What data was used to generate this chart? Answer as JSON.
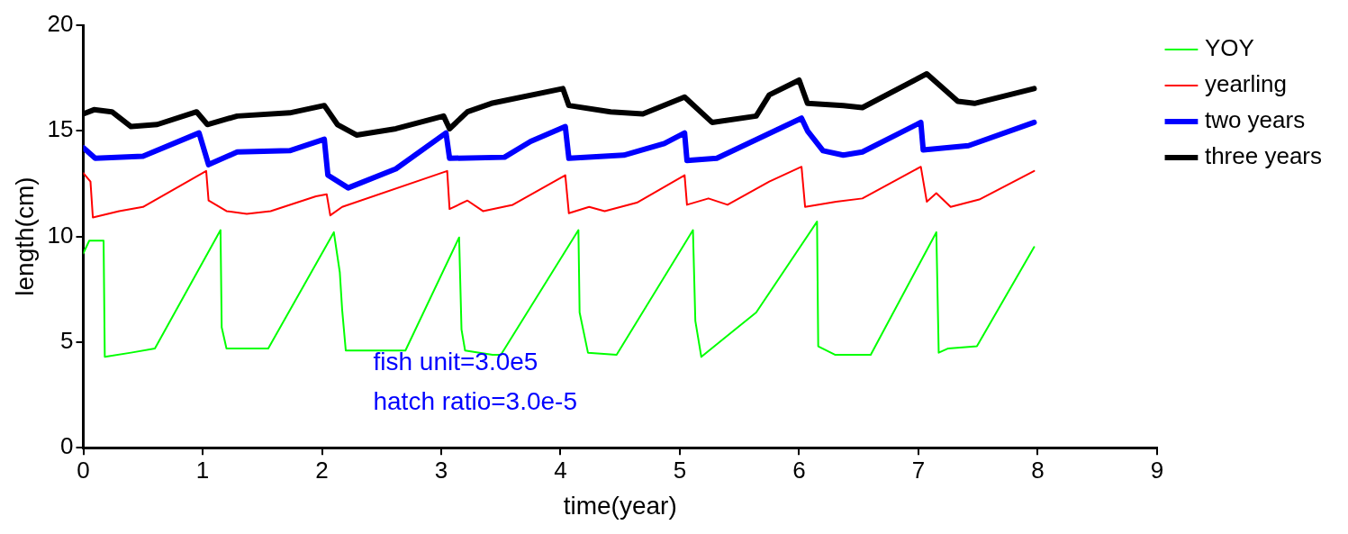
{
  "chart_data": {
    "type": "line",
    "xlabel": "time(year)",
    "ylabel": "length(cm)",
    "xlim": [
      0,
      9
    ],
    "xticks": [
      0,
      1,
      2,
      3,
      4,
      5,
      6,
      7,
      8,
      9
    ],
    "ylim": [
      0,
      20
    ],
    "yticks": [
      0,
      5,
      10,
      15,
      20
    ],
    "grid": false,
    "legend": "right",
    "marker": "none",
    "line_style": "solid",
    "annotations": [
      "fish unit=3.0e5",
      "hatch ratio=3.0e-5"
    ],
    "series": [
      {
        "name": "YOY",
        "color": "#00ff00",
        "x": [
          0,
          0.05,
          0.17,
          0.18,
          0.4,
          0.6,
          1.15,
          1.16,
          1.2,
          1.55,
          2.1,
          2.15,
          2.17,
          2.2,
          2.7,
          3.15,
          3.17,
          3.2,
          3.43,
          3.5,
          4.15,
          4.16,
          4.23,
          4.47,
          5.11,
          5.13,
          5.18,
          5.42,
          5.64,
          6.15,
          6.16,
          6.3,
          6.6,
          7.15,
          7.17,
          7.25,
          7.49,
          7.97
        ],
        "values": [
          9.2,
          9.8,
          9.8,
          4.3,
          4.5,
          4.7,
          10.3,
          5.7,
          4.7,
          4.7,
          10.2,
          8.3,
          6.5,
          4.6,
          4.6,
          9.95,
          5.6,
          4.6,
          4.4,
          4.4,
          10.3,
          6.4,
          4.5,
          4.4,
          10.3,
          6.0,
          4.3,
          5.4,
          6.4,
          10.7,
          4.8,
          4.4,
          4.4,
          10.2,
          4.5,
          4.7,
          4.8,
          9.5
        ]
      },
      {
        "name": "yearling",
        "color": "#ff0000",
        "x": [
          0,
          0.06,
          0.08,
          0.3,
          0.5,
          1.03,
          1.05,
          1.2,
          1.37,
          1.57,
          1.95,
          2.04,
          2.07,
          2.17,
          3.05,
          3.07,
          3.22,
          3.35,
          3.6,
          4.04,
          4.07,
          4.24,
          4.37,
          4.64,
          5.04,
          5.06,
          5.24,
          5.4,
          5.75,
          6.02,
          6.05,
          6.31,
          6.53,
          7.02,
          7.07,
          7.15,
          7.27,
          7.51,
          7.97
        ],
        "values": [
          13.0,
          12.6,
          10.9,
          11.2,
          11.4,
          13.1,
          11.7,
          11.2,
          11.07,
          11.2,
          11.9,
          12.0,
          11.0,
          11.4,
          13.1,
          11.3,
          11.7,
          11.2,
          11.5,
          12.9,
          11.1,
          11.4,
          11.2,
          11.6,
          12.9,
          11.5,
          11.8,
          11.5,
          12.6,
          13.3,
          11.4,
          11.65,
          11.8,
          13.3,
          11.65,
          12.05,
          11.4,
          11.75,
          13.1
        ]
      },
      {
        "name": "two years",
        "color": "#0000ff",
        "x": [
          0,
          0.1,
          0.5,
          0.97,
          1.05,
          1.29,
          1.73,
          2.02,
          2.05,
          2.22,
          2.62,
          3.04,
          3.07,
          3.53,
          3.75,
          4.04,
          4.07,
          4.53,
          4.87,
          5.04,
          5.06,
          5.31,
          6.02,
          6.07,
          6.2,
          6.37,
          6.53,
          7.02,
          7.04,
          7.42,
          7.97
        ],
        "values": [
          14.2,
          13.7,
          13.8,
          14.9,
          13.4,
          14.0,
          14.06,
          14.6,
          12.9,
          12.3,
          13.2,
          14.9,
          13.7,
          13.75,
          14.5,
          15.2,
          13.7,
          13.85,
          14.4,
          14.9,
          13.6,
          13.7,
          15.6,
          15.0,
          14.06,
          13.85,
          14.0,
          15.4,
          14.1,
          14.3,
          15.4
        ]
      },
      {
        "name": "three years",
        "color": "#000000",
        "x": [
          0,
          0.09,
          0.24,
          0.4,
          0.62,
          0.95,
          1.04,
          1.29,
          1.73,
          2.02,
          2.13,
          2.29,
          2.62,
          3.02,
          3.07,
          3.22,
          3.42,
          4.02,
          4.07,
          4.42,
          4.69,
          5.04,
          5.27,
          5.64,
          5.75,
          6.0,
          6.07,
          6.37,
          6.53,
          7.07,
          7.33,
          7.47,
          7.97
        ],
        "values": [
          15.8,
          16.0,
          15.9,
          15.2,
          15.3,
          15.9,
          15.3,
          15.7,
          15.85,
          16.2,
          15.3,
          14.8,
          15.1,
          15.7,
          15.1,
          15.9,
          16.3,
          17.0,
          16.2,
          15.9,
          15.8,
          16.6,
          15.4,
          15.7,
          16.7,
          17.4,
          16.3,
          16.2,
          16.1,
          17.7,
          16.4,
          16.3,
          17.0
        ]
      }
    ]
  }
}
